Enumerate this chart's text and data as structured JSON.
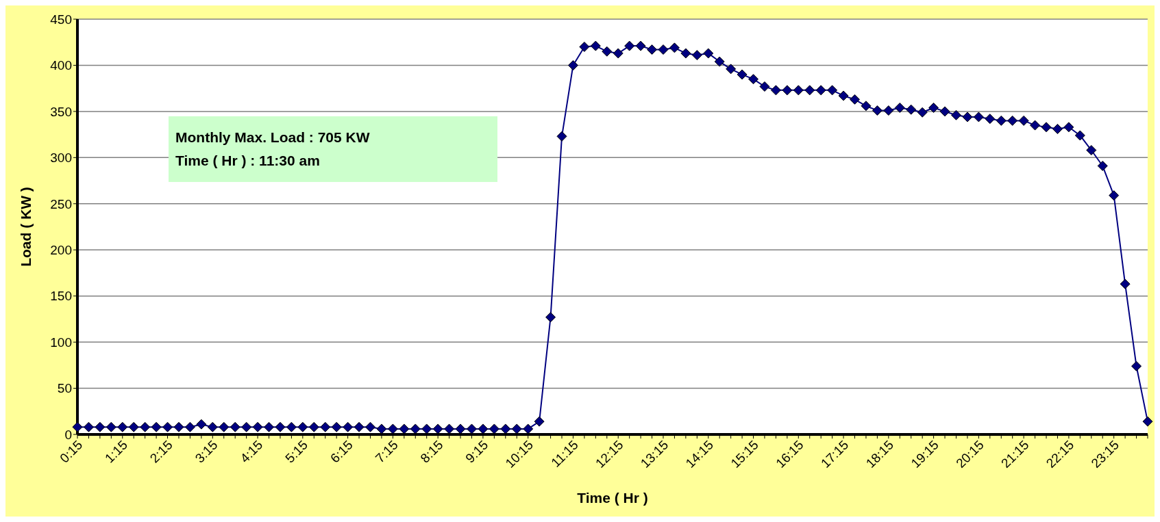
{
  "chart_data": {
    "type": "line",
    "xlabel": "Time ( Hr )",
    "ylabel": "Load ( KW )",
    "categories": [
      "0:15",
      null,
      null,
      null,
      "1:15",
      null,
      null,
      null,
      "2:15",
      null,
      null,
      null,
      "3:15",
      null,
      null,
      null,
      "4:15",
      null,
      null,
      null,
      "5:15",
      null,
      null,
      null,
      "6:15",
      null,
      null,
      null,
      "7:15",
      null,
      null,
      null,
      "8:15",
      null,
      null,
      null,
      "9:15",
      null,
      null,
      null,
      "10:15",
      null,
      null,
      null,
      "11:15",
      null,
      null,
      null,
      "12:15",
      null,
      null,
      null,
      "13:15",
      null,
      null,
      null,
      "14:15",
      null,
      null,
      null,
      "15:15",
      null,
      null,
      null,
      "16:15",
      null,
      null,
      null,
      "17:15",
      null,
      null,
      null,
      "18:15",
      null,
      null,
      null,
      "19:15",
      null,
      null,
      null,
      "20:15",
      null,
      null,
      null,
      "21:15",
      null,
      null,
      null,
      "22:15",
      null,
      null,
      null,
      "23:15",
      null,
      null,
      null
    ],
    "series": [
      {
        "color": "#000080",
        "values": [
          8,
          8,
          8,
          8,
          8,
          8,
          8,
          8,
          8,
          8,
          8,
          11,
          8,
          8,
          8,
          8,
          8,
          8,
          8,
          8,
          8,
          8,
          8,
          8,
          8,
          8,
          8,
          6,
          6,
          6,
          6,
          6,
          6,
          6,
          6,
          6,
          6,
          6,
          6,
          6,
          6,
          14,
          127,
          323,
          400,
          420,
          421,
          415,
          413,
          421,
          421,
          417,
          417,
          419,
          413,
          411,
          413,
          404,
          396,
          390,
          385,
          377,
          373,
          373,
          373,
          373,
          373,
          373,
          367,
          363,
          356,
          351,
          351,
          354,
          352,
          349,
          354,
          350,
          346,
          344,
          344,
          342,
          340,
          340,
          340,
          335,
          333,
          331,
          333,
          324,
          308,
          291,
          259,
          163,
          74,
          14
        ]
      }
    ],
    "ylim": [
      0,
      450
    ],
    "yticks": [
      0,
      50,
      100,
      150,
      200,
      250,
      300,
      350,
      400,
      450
    ],
    "grid": "y",
    "marker": "diamond",
    "line_style": "solid",
    "annotations": [
      "Monthly Max. Load : 705 KW",
      "Time ( Hr ) : 11:30 am"
    ]
  }
}
